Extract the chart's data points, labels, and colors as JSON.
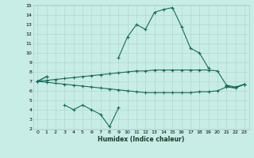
{
  "xlabel": "Humidex (Indice chaleur)",
  "x": [
    0,
    1,
    2,
    3,
    4,
    5,
    6,
    7,
    8,
    9,
    10,
    11,
    12,
    13,
    14,
    15,
    16,
    17,
    18,
    19,
    20,
    21,
    22,
    23
  ],
  "line_peak": [
    7.0,
    7.5,
    null,
    null,
    null,
    null,
    null,
    null,
    null,
    9.5,
    11.7,
    13.0,
    12.5,
    14.3,
    14.6,
    14.8,
    12.8,
    10.5,
    10.0,
    8.4,
    null,
    6.5,
    6.3,
    6.7
  ],
  "line_low": [
    7.0,
    7.5,
    null,
    4.5,
    4.0,
    4.5,
    4.0,
    3.5,
    2.2,
    4.2,
    null,
    null,
    null,
    null,
    null,
    null,
    null,
    null,
    null,
    null,
    null,
    null,
    null,
    null
  ],
  "line_upper": [
    7.0,
    7.1,
    7.2,
    7.3,
    7.4,
    7.5,
    7.6,
    7.7,
    7.8,
    7.9,
    8.0,
    8.1,
    8.1,
    8.2,
    8.2,
    8.2,
    8.2,
    8.2,
    8.2,
    8.2,
    8.1,
    6.6,
    6.4,
    6.7
  ],
  "line_lower": [
    7.0,
    6.9,
    6.8,
    6.7,
    6.6,
    6.5,
    6.4,
    6.3,
    6.2,
    6.1,
    6.0,
    5.9,
    5.8,
    5.8,
    5.8,
    5.8,
    5.8,
    5.8,
    5.9,
    5.9,
    6.0,
    6.4,
    6.3,
    6.7
  ],
  "ylim": [
    2,
    15
  ],
  "xlim": [
    -0.5,
    23.5
  ],
  "yticks": [
    2,
    3,
    4,
    5,
    6,
    7,
    8,
    9,
    10,
    11,
    12,
    13,
    14,
    15
  ],
  "xticks": [
    0,
    1,
    2,
    3,
    4,
    5,
    6,
    7,
    8,
    9,
    10,
    11,
    12,
    13,
    14,
    15,
    16,
    17,
    18,
    19,
    20,
    21,
    22,
    23
  ],
  "bg_color": "#c8ece6",
  "grid_color": "#aad4cc",
  "line_color": "#1a6b5a"
}
